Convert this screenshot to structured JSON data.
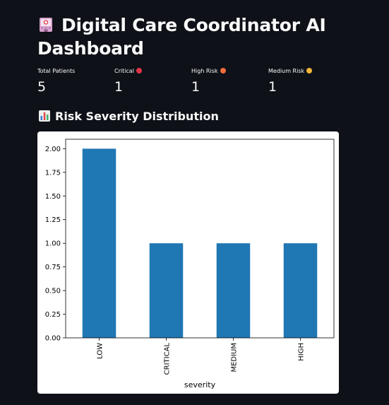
{
  "header": {
    "title": "Digital Care Coordinator AI Dashboard",
    "icon": "hospital-icon"
  },
  "metrics": [
    {
      "label": "Total Patients",
      "value": "5",
      "dot_color": null
    },
    {
      "label": "Critical",
      "value": "1",
      "dot_color": "#e0344a"
    },
    {
      "label": "High Risk",
      "value": "1",
      "dot_color": "#f26c3a"
    },
    {
      "label": "Medium Risk",
      "value": "1",
      "dot_color": "#f4b63a"
    }
  ],
  "section": {
    "title": "Risk Severity Distribution",
    "icon": "bar-chart-icon"
  },
  "colors": {
    "background": "#0e1117",
    "bar": "#1f77b4"
  },
  "chart_data": {
    "type": "bar",
    "categories": [
      "LOW",
      "CRITICAL",
      "MEDIUM",
      "HIGH"
    ],
    "values": [
      2,
      1,
      1,
      1
    ],
    "title": "",
    "xlabel": "severity",
    "ylabel": "",
    "ylim": [
      0,
      2.1
    ],
    "yticks": [
      "0.00",
      "0.25",
      "0.50",
      "0.75",
      "1.00",
      "1.25",
      "1.50",
      "1.75",
      "2.00"
    ],
    "grid": false,
    "legend": "none"
  }
}
